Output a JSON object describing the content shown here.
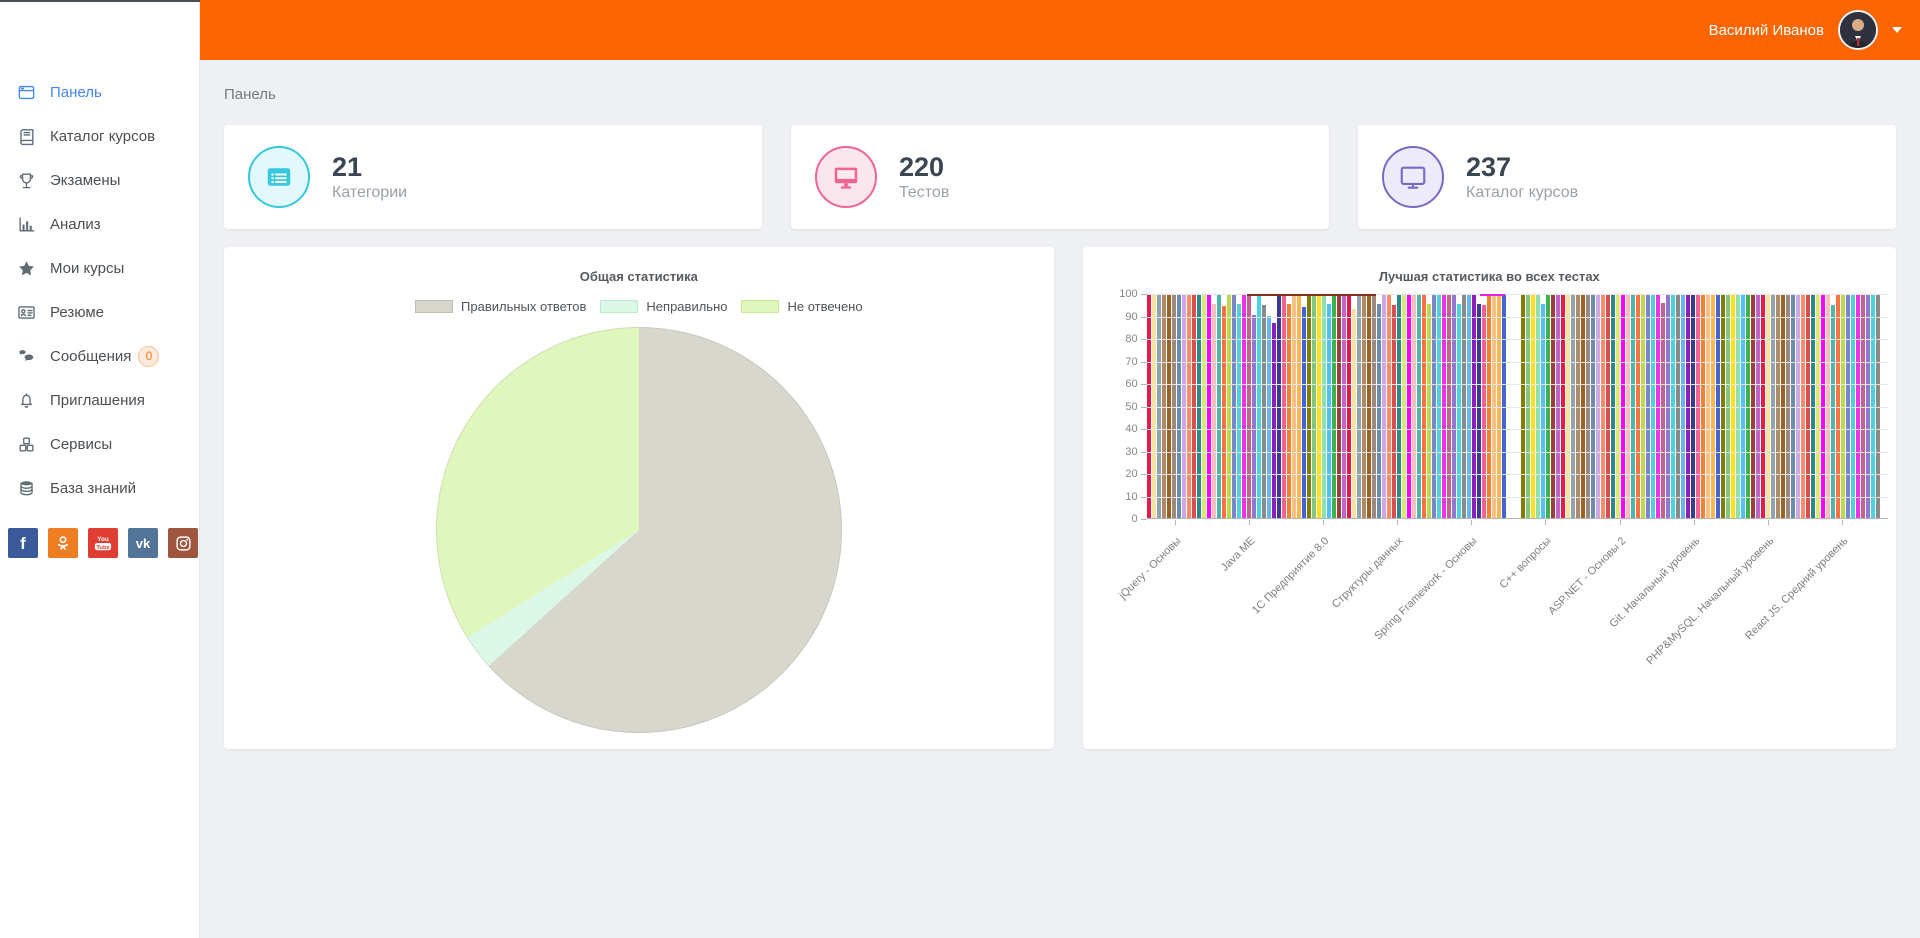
{
  "header": {
    "user_name": "Василий Иванов",
    "brand_color": "#fd6502"
  },
  "breadcrumb": "Панель",
  "sidebar": {
    "items": [
      {
        "label": "Панель",
        "icon": "dashboard-icon",
        "active": true
      },
      {
        "label": "Каталог курсов",
        "icon": "book-icon"
      },
      {
        "label": "Экзамены",
        "icon": "trophy-icon"
      },
      {
        "label": "Анализ",
        "icon": "chart-icon"
      },
      {
        "label": "Мои курсы",
        "icon": "star-icon"
      },
      {
        "label": "Резюме",
        "icon": "id-card-icon"
      },
      {
        "label": "Сообщения",
        "icon": "comments-icon",
        "badge": "0"
      },
      {
        "label": "Приглашения",
        "icon": "bell-icon"
      },
      {
        "label": "Сервисы",
        "icon": "cubes-icon"
      },
      {
        "label": "База знаний",
        "icon": "database-icon"
      }
    ],
    "social": [
      {
        "name": "facebook",
        "color": "#3b5998"
      },
      {
        "name": "odnoklassniki",
        "color": "#ef7d21"
      },
      {
        "name": "youtube",
        "color": "#e03d32"
      },
      {
        "name": "vk",
        "color": "#527498"
      },
      {
        "name": "instagram",
        "color": "#a0563c"
      }
    ]
  },
  "stat_cards": [
    {
      "value": "21",
      "label": "Категории",
      "icon": "category-card-icon",
      "accent": "#35c8de",
      "bg": "#e2f8fc"
    },
    {
      "value": "220",
      "label": "Тестов",
      "icon": "monitor-filled-icon",
      "accent": "#f0648f",
      "bg": "#fce6ee"
    },
    {
      "value": "237",
      "label": "Каталог курсов",
      "icon": "monitor-outline-icon",
      "accent": "#7b68c4",
      "bg": "#edeafa"
    }
  ],
  "chart_data": [
    {
      "type": "pie",
      "title": "Общая статистика",
      "legend_position": "top",
      "start_angle_deg": 0,
      "direction": "clockwise",
      "slices": [
        {
          "label": "Правильных ответов",
          "value": 63.3,
          "color": "#d7d7cd",
          "border": "#bebeb2"
        },
        {
          "label": "Неправильно",
          "value": 2.8,
          "color": "#dbf8e6",
          "border": "#b8edcb"
        },
        {
          "label": "Не отвечено",
          "value": 33.9,
          "color": "#dff7bc",
          "border": "#c4ee90"
        }
      ]
    },
    {
      "type": "bar",
      "title": "Лучшая статистика во всех тестах",
      "xlabel": "",
      "ylabel": "",
      "ylim": [
        0,
        100
      ],
      "ytick_step": 10,
      "grid": true,
      "legend_position": "none",
      "categories": [
        "jQuery - Основы",
        "Java ME",
        "1С Предприятие 8.0",
        "Структуры данных",
        "Spring Framework - Основы",
        "C++ вопросы",
        "ASP.NET - Основы 2",
        "Git. Начальный уровень",
        "PHP&MySQL. Начальный уровень",
        "React JS. Средний уровень"
      ],
      "gap_after_index": 71,
      "values": [
        100,
        100,
        100,
        100,
        100,
        100,
        100,
        100,
        100,
        100,
        100,
        100,
        100,
        95.5,
        100,
        94.5,
        100,
        100,
        95.5,
        100,
        100,
        90.5,
        100,
        95,
        90,
        87,
        100,
        100,
        95.5,
        100,
        100,
        94,
        100,
        100,
        100,
        100,
        95.5,
        100,
        100,
        100,
        100,
        93.5,
        100,
        100,
        100,
        100,
        95.5,
        100,
        100,
        95,
        100,
        100,
        100,
        100,
        100,
        100,
        95.5,
        100,
        100,
        100,
        100,
        100,
        95.5,
        100,
        100,
        100,
        95.5,
        95,
        100,
        100,
        100,
        100,
        100,
        100,
        100,
        100,
        95.5,
        100,
        100,
        100,
        100,
        100,
        100,
        100,
        100,
        100,
        100,
        100,
        100,
        100,
        100,
        100,
        100,
        100,
        100,
        100,
        100,
        100,
        100,
        100,
        96,
        100,
        100,
        100,
        100,
        100,
        100,
        100,
        100,
        100,
        100,
        100,
        100,
        100,
        100,
        100,
        100,
        100,
        100,
        100,
        100,
        100,
        100,
        100,
        100,
        100,
        100,
        100,
        100,
        100,
        100,
        100,
        100,
        100,
        95,
        100,
        100,
        100,
        100,
        100,
        100,
        100,
        100,
        100
      ],
      "bar_palette": [
        "#e6194b",
        "#3cb44b",
        "#ffe119",
        "#4363d8",
        "#f58231",
        "#911eb4",
        "#46d4e0",
        "#f032e6",
        "#bcd94e",
        "#fabebe",
        "#2a8a8a",
        "#c9a7e8",
        "#9a6324",
        "#f0e6a0",
        "#a03c3c",
        "#8fe0b0",
        "#808000",
        "#f5c08a",
        "#3a3a90",
        "#8a8a8a",
        "#c06292",
        "#7986cb",
        "#4db6ac",
        "#dce775",
        "#ff8a65",
        "#a1887f",
        "#90a4ae",
        "#ba68c8",
        "#4fc3f7",
        "#81c784",
        "#ffb74d",
        "#f06292",
        "#64b5f6",
        "#9575cd",
        "#4dd0e1",
        "#ff7043",
        "#ff00ff",
        "#d94f4f",
        "#6a8caf",
        "#b08968"
      ],
      "top_highlights": [
        {
          "from_frac": 0.136,
          "to_frac": 0.31,
          "color": "#8b2a21"
        },
        {
          "from_frac": 0.449,
          "to_frac": 0.484,
          "color": "#e821e8"
        }
      ]
    }
  ]
}
